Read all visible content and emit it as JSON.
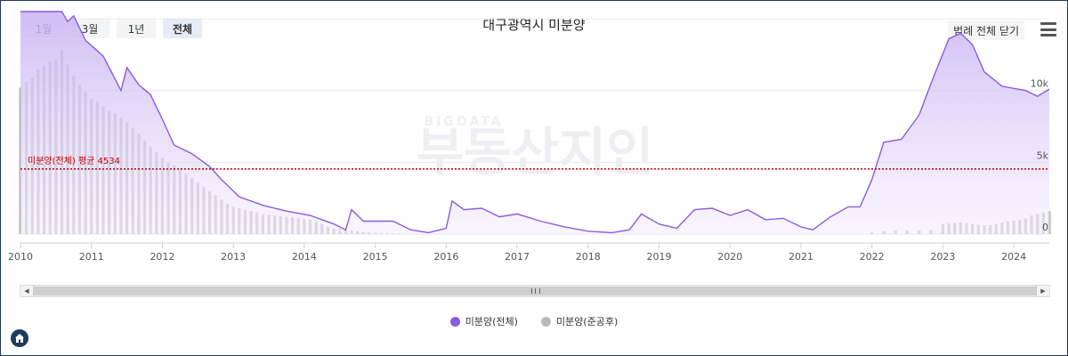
{
  "range_buttons": [
    "1월",
    "3월",
    "1년",
    "전체"
  ],
  "active_range": "전체",
  "legend_toggle_label": "범례 전체 닫기",
  "menu_icon": "hamburger-icon",
  "home_icon": "home-icon",
  "watermark": {
    "small": "BIGDATA",
    "main": "부동산지인"
  },
  "colors": {
    "total_line": "#8a5cdf",
    "total_fill_top": "#c9b3f3",
    "total_fill_bottom": "#f4effd",
    "completed_bar": "#b9b9b9",
    "average_line": "#c00000",
    "grid": "#e6e6e6",
    "legend_total": "#8a5cdf",
    "legend_completed": "#b9b9b9"
  },
  "chart_data": {
    "type": "area",
    "title": "대구광역시 미분양",
    "x_start": "2010-01",
    "x_end": "2024-07",
    "x_tick_labels": [
      "2010",
      "2011",
      "2012",
      "2013",
      "2014",
      "2015",
      "2016",
      "2017",
      "2018",
      "2019",
      "2020",
      "2021",
      "2022",
      "2023",
      "2024"
    ],
    "y_tick_labels": [
      "0",
      "5k",
      "10k"
    ],
    "ylim": [
      0,
      15500
    ],
    "grid": "horizontal",
    "legend_position": "bottom-center",
    "average": {
      "label": "미분양(전체) 평균 4534",
      "value": 4534
    },
    "series": [
      {
        "name": "미분양(전체)",
        "kind": "area",
        "points": [
          [
            "2010-01",
            15900
          ],
          [
            "2010-03",
            16000
          ],
          [
            "2010-05",
            16300
          ],
          [
            "2010-07",
            16200
          ],
          [
            "2010-08",
            16000
          ],
          [
            "2010-09",
            14800
          ],
          [
            "2010-10",
            15200
          ],
          [
            "2010-12",
            13500
          ],
          [
            "2011-03",
            12400
          ],
          [
            "2011-06",
            10000
          ],
          [
            "2011-07",
            11600
          ],
          [
            "2011-09",
            10400
          ],
          [
            "2011-11",
            9700
          ],
          [
            "2012-01",
            8000
          ],
          [
            "2012-03",
            6200
          ],
          [
            "2012-06",
            5600
          ],
          [
            "2012-09",
            4700
          ],
          [
            "2012-11",
            3800
          ],
          [
            "2013-02",
            2600
          ],
          [
            "2013-06",
            2000
          ],
          [
            "2013-10",
            1600
          ],
          [
            "2014-02",
            1300
          ],
          [
            "2014-06",
            700
          ],
          [
            "2014-08",
            300
          ],
          [
            "2014-09",
            1700
          ],
          [
            "2014-11",
            900
          ],
          [
            "2015-01",
            900
          ],
          [
            "2015-04",
            900
          ],
          [
            "2015-07",
            300
          ],
          [
            "2015-10",
            100
          ],
          [
            "2016-01",
            400
          ],
          [
            "2016-02",
            2300
          ],
          [
            "2016-04",
            1700
          ],
          [
            "2016-07",
            1800
          ],
          [
            "2016-10",
            1200
          ],
          [
            "2017-01",
            1400
          ],
          [
            "2017-05",
            900
          ],
          [
            "2017-09",
            500
          ],
          [
            "2018-01",
            200
          ],
          [
            "2018-05",
            100
          ],
          [
            "2018-08",
            300
          ],
          [
            "2018-10",
            1400
          ],
          [
            "2019-01",
            700
          ],
          [
            "2019-04",
            400
          ],
          [
            "2019-07",
            1700
          ],
          [
            "2019-10",
            1800
          ],
          [
            "2020-01",
            1300
          ],
          [
            "2020-04",
            1700
          ],
          [
            "2020-07",
            1000
          ],
          [
            "2020-10",
            1100
          ],
          [
            "2021-01",
            500
          ],
          [
            "2021-03",
            300
          ],
          [
            "2021-06",
            1200
          ],
          [
            "2021-09",
            1900
          ],
          [
            "2021-11",
            1900
          ],
          [
            "2022-01",
            3800
          ],
          [
            "2022-03",
            6400
          ],
          [
            "2022-06",
            6600
          ],
          [
            "2022-09",
            8300
          ],
          [
            "2022-11",
            10500
          ],
          [
            "2023-02",
            13600
          ],
          [
            "2023-04",
            14000
          ],
          [
            "2023-06",
            13200
          ],
          [
            "2023-08",
            11300
          ],
          [
            "2023-11",
            10300
          ],
          [
            "2024-03",
            10000
          ],
          [
            "2024-05",
            9600
          ],
          [
            "2024-07",
            10100
          ]
        ]
      },
      {
        "name": "미분양(준공후)",
        "kind": "bar",
        "points": [
          [
            "2010-01",
            10200
          ],
          [
            "2010-02",
            10600
          ],
          [
            "2010-03",
            10900
          ],
          [
            "2010-04",
            11500
          ],
          [
            "2010-05",
            11700
          ],
          [
            "2010-06",
            12000
          ],
          [
            "2010-07",
            12100
          ],
          [
            "2010-08",
            12800
          ],
          [
            "2010-09",
            11800
          ],
          [
            "2010-10",
            11000
          ],
          [
            "2010-11",
            10400
          ],
          [
            "2010-12",
            9900
          ],
          [
            "2011-01",
            9400
          ],
          [
            "2011-02",
            9200
          ],
          [
            "2011-03",
            8900
          ],
          [
            "2011-04",
            8600
          ],
          [
            "2011-05",
            8400
          ],
          [
            "2011-06",
            8100
          ],
          [
            "2011-07",
            7800
          ],
          [
            "2011-08",
            7400
          ],
          [
            "2011-09",
            7000
          ],
          [
            "2011-10",
            6500
          ],
          [
            "2011-11",
            6100
          ],
          [
            "2011-12",
            5700
          ],
          [
            "2012-01",
            5300
          ],
          [
            "2012-02",
            5000
          ],
          [
            "2012-03",
            4800
          ],
          [
            "2012-04",
            4600
          ],
          [
            "2012-05",
            4200
          ],
          [
            "2012-06",
            3900
          ],
          [
            "2012-07",
            3600
          ],
          [
            "2012-08",
            3300
          ],
          [
            "2012-09",
            3000
          ],
          [
            "2012-10",
            2700
          ],
          [
            "2012-11",
            2400
          ],
          [
            "2012-12",
            2100
          ],
          [
            "2013-01",
            1900
          ],
          [
            "2013-02",
            1800
          ],
          [
            "2013-03",
            1700
          ],
          [
            "2013-04",
            1600
          ],
          [
            "2013-05",
            1500
          ],
          [
            "2013-06",
            1400
          ],
          [
            "2013-07",
            1350
          ],
          [
            "2013-08",
            1300
          ],
          [
            "2013-09",
            1250
          ],
          [
            "2013-10",
            1200
          ],
          [
            "2013-11",
            1150
          ],
          [
            "2013-12",
            1100
          ],
          [
            "2014-01",
            1050
          ],
          [
            "2014-02",
            1000
          ],
          [
            "2014-03",
            900
          ],
          [
            "2014-04",
            700
          ],
          [
            "2014-05",
            500
          ],
          [
            "2014-06",
            400
          ],
          [
            "2014-07",
            350
          ],
          [
            "2014-08",
            300
          ],
          [
            "2014-09",
            250
          ],
          [
            "2014-10",
            200
          ],
          [
            "2014-11",
            150
          ],
          [
            "2014-12",
            120
          ],
          [
            "2015-01",
            100
          ],
          [
            "2015-02",
            80
          ],
          [
            "2015-03",
            70
          ],
          [
            "2015-04",
            60
          ],
          [
            "2015-05",
            50
          ],
          [
            "2022-01",
            150
          ],
          [
            "2022-03",
            200
          ],
          [
            "2022-05",
            250
          ],
          [
            "2022-07",
            250
          ],
          [
            "2022-09",
            260
          ],
          [
            "2022-11",
            280
          ],
          [
            "2023-01",
            700
          ],
          [
            "2023-02",
            750
          ],
          [
            "2023-03",
            780
          ],
          [
            "2023-04",
            800
          ],
          [
            "2023-05",
            760
          ],
          [
            "2023-06",
            700
          ],
          [
            "2023-07",
            650
          ],
          [
            "2023-08",
            620
          ],
          [
            "2023-09",
            620
          ],
          [
            "2023-10",
            700
          ],
          [
            "2023-11",
            800
          ],
          [
            "2023-12",
            900
          ],
          [
            "2024-01",
            950
          ],
          [
            "2024-02",
            1000
          ],
          [
            "2024-03",
            1100
          ],
          [
            "2024-04",
            1300
          ],
          [
            "2024-05",
            1400
          ],
          [
            "2024-06",
            1500
          ],
          [
            "2024-07",
            1600
          ]
        ]
      }
    ]
  }
}
